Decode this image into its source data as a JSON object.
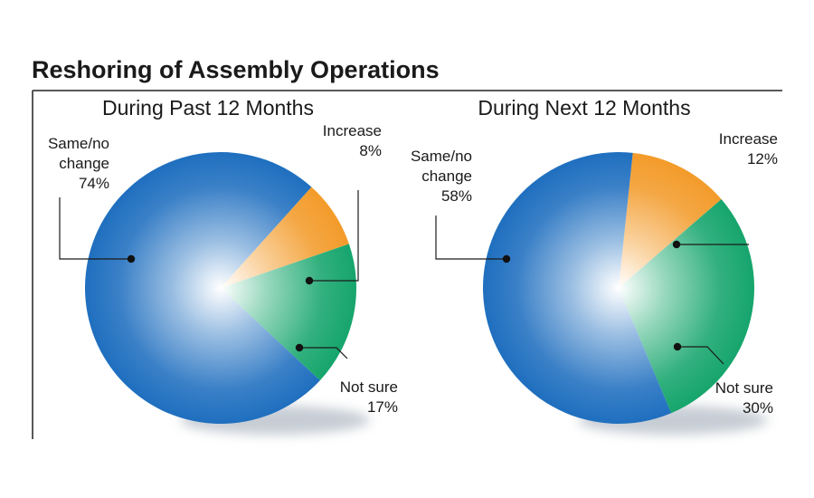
{
  "title": "Reshoring of Assembly Operations",
  "colors": {
    "same": "#1f6fbf",
    "increase": "#f39b2a",
    "not_sure": "#16a56c",
    "frame": "#222222",
    "text": "#1a1a1a"
  },
  "chart_data": [
    {
      "type": "pie",
      "title": "During Past 12 Months",
      "slices": [
        {
          "key": "increase",
          "label_lines": [
            "Increase",
            "8%"
          ],
          "value": 8
        },
        {
          "key": "not_sure",
          "label_lines": [
            "Not sure",
            "17%"
          ],
          "value": 17
        },
        {
          "key": "same",
          "label_lines": [
            "Same/no",
            "change",
            "74%"
          ],
          "value": 74
        }
      ]
    },
    {
      "type": "pie",
      "title": "During Next 12 Months",
      "slices": [
        {
          "key": "increase",
          "label_lines": [
            "Increase",
            "12%"
          ],
          "value": 12
        },
        {
          "key": "not_sure",
          "label_lines": [
            "Not sure",
            "30%"
          ],
          "value": 30
        },
        {
          "key": "same",
          "label_lines": [
            "Same/no",
            "change",
            "58%"
          ],
          "value": 58
        }
      ]
    }
  ]
}
